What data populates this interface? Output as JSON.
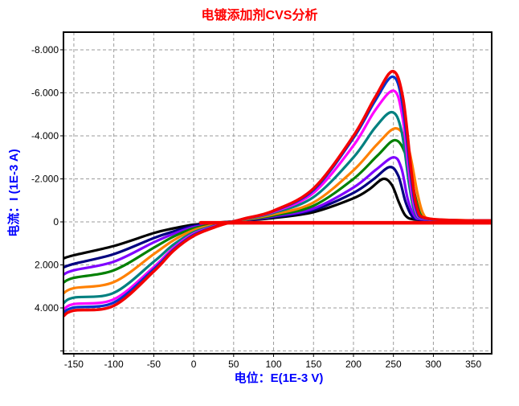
{
  "colors": {
    "title": "#FF0000",
    "axis_labels": "#0000FF",
    "tick_text": "#000000",
    "grid": "#9B9B9B",
    "plot_border": "#000000",
    "background": "#FFFFFF"
  },
  "chart_data": {
    "type": "line",
    "title": "电镀添加剂CVS分析",
    "xlabel": "电位：E(1E-3 V)",
    "ylabel": "电流：I (1E-3 A)",
    "grid": "dashed",
    "legend": "none",
    "x_axis": {
      "min": -163,
      "max": 373,
      "ticks": [
        {
          "v": -150,
          "label": "-150"
        },
        {
          "v": -100,
          "label": "-100"
        },
        {
          "v": -50,
          "label": "-50"
        },
        {
          "v": 0,
          "label": "0"
        },
        {
          "v": 50,
          "label": "50"
        },
        {
          "v": 100,
          "label": "100"
        },
        {
          "v": 150,
          "label": "150"
        },
        {
          "v": 200,
          "label": "200"
        },
        {
          "v": 250,
          "label": "250"
        },
        {
          "v": 300,
          "label": "300"
        },
        {
          "v": 350,
          "label": "350"
        }
      ]
    },
    "y_axis": {
      "min": -8.82,
      "max": 6.13,
      "inverted_negative_up": true,
      "ticks": [
        {
          "v": -8,
          "label": "-8.000"
        },
        {
          "v": -6,
          "label": "-6.000"
        },
        {
          "v": -4,
          "label": "-4.000"
        },
        {
          "v": -2,
          "label": "-2.000"
        },
        {
          "v": 0,
          "label": "0"
        },
        {
          "v": 2,
          "label": "2.000"
        },
        {
          "v": 4,
          "label": "4.000"
        },
        {
          "v": 6,
          "label": ""
        }
      ]
    },
    "series": [
      {
        "name": "curve-black",
        "color": "#000000",
        "width": 3.2,
        "points": [
          [
            -163,
            1.7
          ],
          [
            -150,
            1.55
          ],
          [
            -100,
            1.12
          ],
          [
            -50,
            0.52
          ],
          [
            -25,
            0.3
          ],
          [
            0,
            0.13
          ],
          [
            30,
            0.03
          ],
          [
            60,
            -0.05
          ],
          [
            100,
            -0.18
          ],
          [
            150,
            -0.45
          ],
          [
            200,
            -1.1
          ],
          [
            220,
            -1.52
          ],
          [
            237,
            -2.0
          ],
          [
            248,
            -1.72
          ],
          [
            257,
            -0.9
          ],
          [
            265,
            -0.3
          ],
          [
            275,
            -0.12
          ],
          [
            300,
            -0.07
          ],
          [
            340,
            -0.05
          ],
          [
            373,
            -0.05
          ]
        ]
      },
      {
        "name": "curve-navy",
        "color": "#000080",
        "width": 3.2,
        "points": [
          [
            -163,
            2.12
          ],
          [
            -150,
            1.95
          ],
          [
            -100,
            1.5
          ],
          [
            -50,
            0.75
          ],
          [
            -25,
            0.44
          ],
          [
            0,
            0.18
          ],
          [
            30,
            0.05
          ],
          [
            60,
            -0.06
          ],
          [
            100,
            -0.22
          ],
          [
            150,
            -0.55
          ],
          [
            200,
            -1.35
          ],
          [
            225,
            -1.98
          ],
          [
            245,
            -2.55
          ],
          [
            256,
            -2.15
          ],
          [
            265,
            -0.95
          ],
          [
            273,
            -0.28
          ],
          [
            283,
            -0.11
          ],
          [
            320,
            -0.06
          ],
          [
            373,
            -0.05
          ]
        ]
      },
      {
        "name": "curve-purple",
        "color": "#7F00FF",
        "width": 3.2,
        "points": [
          [
            -163,
            2.45
          ],
          [
            -150,
            2.25
          ],
          [
            -100,
            1.85
          ],
          [
            -50,
            0.95
          ],
          [
            -25,
            0.55
          ],
          [
            0,
            0.24
          ],
          [
            30,
            0.07
          ],
          [
            60,
            -0.07
          ],
          [
            100,
            -0.26
          ],
          [
            150,
            -0.62
          ],
          [
            200,
            -1.6
          ],
          [
            228,
            -2.42
          ],
          [
            250,
            -3.0
          ],
          [
            260,
            -2.5
          ],
          [
            268,
            -1.05
          ],
          [
            276,
            -0.3
          ],
          [
            286,
            -0.12
          ],
          [
            330,
            -0.06
          ],
          [
            373,
            -0.05
          ]
        ]
      },
      {
        "name": "curve-green",
        "color": "#008000",
        "width": 3.2,
        "points": [
          [
            -163,
            2.82
          ],
          [
            -150,
            2.6
          ],
          [
            -100,
            2.25
          ],
          [
            -50,
            1.2
          ],
          [
            -25,
            0.68
          ],
          [
            0,
            0.3
          ],
          [
            30,
            0.09
          ],
          [
            60,
            -0.08
          ],
          [
            100,
            -0.3
          ],
          [
            150,
            -0.75
          ],
          [
            200,
            -2.0
          ],
          [
            230,
            -3.08
          ],
          [
            252,
            -3.8
          ],
          [
            266,
            -3.05
          ],
          [
            277,
            -1.25
          ],
          [
            284,
            -0.35
          ],
          [
            294,
            -0.13
          ],
          [
            330,
            -0.07
          ],
          [
            373,
            -0.06
          ]
        ]
      },
      {
        "name": "curve-orange",
        "color": "#FF8000",
        "width": 3.2,
        "points": [
          [
            -163,
            3.32
          ],
          [
            -150,
            3.08
          ],
          [
            -100,
            2.8
          ],
          [
            -50,
            1.5
          ],
          [
            -25,
            0.85
          ],
          [
            0,
            0.38
          ],
          [
            30,
            0.11
          ],
          [
            60,
            -0.09
          ],
          [
            100,
            -0.35
          ],
          [
            150,
            -0.9
          ],
          [
            200,
            -2.4
          ],
          [
            230,
            -3.62
          ],
          [
            253,
            -4.35
          ],
          [
            268,
            -3.55
          ],
          [
            280,
            -1.35
          ],
          [
            287,
            -0.4
          ],
          [
            297,
            -0.14
          ],
          [
            335,
            -0.08
          ],
          [
            373,
            -0.06
          ]
        ]
      },
      {
        "name": "curve-teal",
        "color": "#008080",
        "width": 3.2,
        "points": [
          [
            -163,
            3.78
          ],
          [
            -150,
            3.52
          ],
          [
            -100,
            3.3
          ],
          [
            -50,
            1.85
          ],
          [
            -25,
            1.05
          ],
          [
            0,
            0.48
          ],
          [
            30,
            0.14
          ],
          [
            60,
            -0.1
          ],
          [
            100,
            -0.42
          ],
          [
            150,
            -1.15
          ],
          [
            200,
            -3.0
          ],
          [
            227,
            -4.38
          ],
          [
            248,
            -5.1
          ],
          [
            260,
            -4.25
          ],
          [
            270,
            -1.65
          ],
          [
            277,
            -0.45
          ],
          [
            287,
            -0.15
          ],
          [
            330,
            -0.07
          ],
          [
            373,
            -0.06
          ]
        ]
      },
      {
        "name": "curve-magenta",
        "color": "#FF00FF",
        "width": 3.2,
        "points": [
          [
            -163,
            4.08
          ],
          [
            -150,
            3.82
          ],
          [
            -100,
            3.6
          ],
          [
            -50,
            2.1
          ],
          [
            -25,
            1.2
          ],
          [
            0,
            0.55
          ],
          [
            30,
            0.16
          ],
          [
            60,
            -0.11
          ],
          [
            100,
            -0.47
          ],
          [
            150,
            -1.35
          ],
          [
            200,
            -3.55
          ],
          [
            227,
            -5.18
          ],
          [
            250,
            -6.1
          ],
          [
            261,
            -4.95
          ],
          [
            271,
            -1.85
          ],
          [
            278,
            -0.5
          ],
          [
            288,
            -0.16
          ],
          [
            330,
            -0.07
          ],
          [
            373,
            -0.06
          ]
        ]
      },
      {
        "name": "curve-blue",
        "color": "#0033CC",
        "width": 3.2,
        "points": [
          [
            -163,
            4.22
          ],
          [
            -150,
            3.98
          ],
          [
            -100,
            3.75
          ],
          [
            -50,
            2.2
          ],
          [
            -25,
            1.28
          ],
          [
            0,
            0.6
          ],
          [
            30,
            0.18
          ],
          [
            60,
            -0.12
          ],
          [
            100,
            -0.5
          ],
          [
            150,
            -1.48
          ],
          [
            200,
            -3.9
          ],
          [
            227,
            -5.62
          ],
          [
            249,
            -6.75
          ],
          [
            261,
            -5.55
          ],
          [
            272,
            -2.05
          ],
          [
            279,
            -0.55
          ],
          [
            289,
            -0.17
          ],
          [
            330,
            -0.07
          ],
          [
            373,
            -0.06
          ]
        ]
      },
      {
        "name": "curve-red",
        "color": "#F40000",
        "width": 3.6,
        "points": [
          [
            -163,
            4.38
          ],
          [
            -150,
            4.12
          ],
          [
            -100,
            3.9
          ],
          [
            -50,
            2.3
          ],
          [
            -25,
            1.33
          ],
          [
            0,
            0.65
          ],
          [
            30,
            0.2
          ],
          [
            60,
            -0.12
          ],
          [
            100,
            -0.52
          ],
          [
            150,
            -1.55
          ],
          [
            200,
            -4.0
          ],
          [
            227,
            -5.78
          ],
          [
            249,
            -7.0
          ],
          [
            262,
            -5.75
          ],
          [
            273,
            -2.15
          ],
          [
            280,
            -0.6
          ],
          [
            290,
            -0.18
          ],
          [
            330,
            -0.07
          ],
          [
            373,
            -0.06
          ]
        ]
      },
      {
        "name": "baseline-red",
        "color": "#F40000",
        "width": 4.5,
        "straight": true,
        "points": [
          [
            9,
            0.04
          ],
          [
            373,
            0.04
          ]
        ]
      }
    ]
  }
}
